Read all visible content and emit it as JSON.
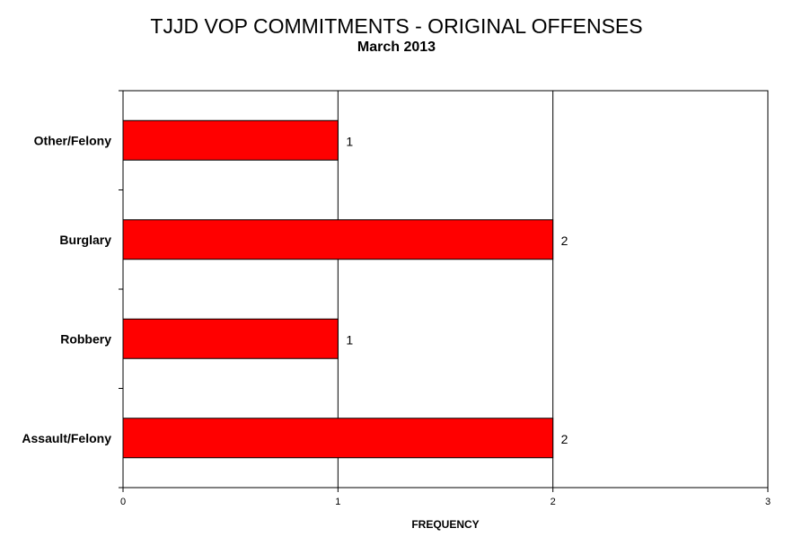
{
  "chart_data": {
    "type": "bar",
    "orientation": "horizontal",
    "title": "TJJD VOP COMMITMENTS - ORIGINAL OFFENSES",
    "subtitle": "March  2013",
    "categories": [
      "Other/Felony",
      "Burglary",
      "Robbery",
      "Assault/Felony"
    ],
    "values": [
      1,
      2,
      1,
      2
    ],
    "data_labels": [
      "1",
      "2",
      "1",
      "2"
    ],
    "xlabel": "FREQUENCY",
    "ylabel": "",
    "xlim": [
      0,
      3
    ],
    "xticks": [
      "0",
      "1",
      "2",
      "3"
    ],
    "grid": "vertical",
    "legend": "none",
    "bar_color": "#FF0000"
  }
}
